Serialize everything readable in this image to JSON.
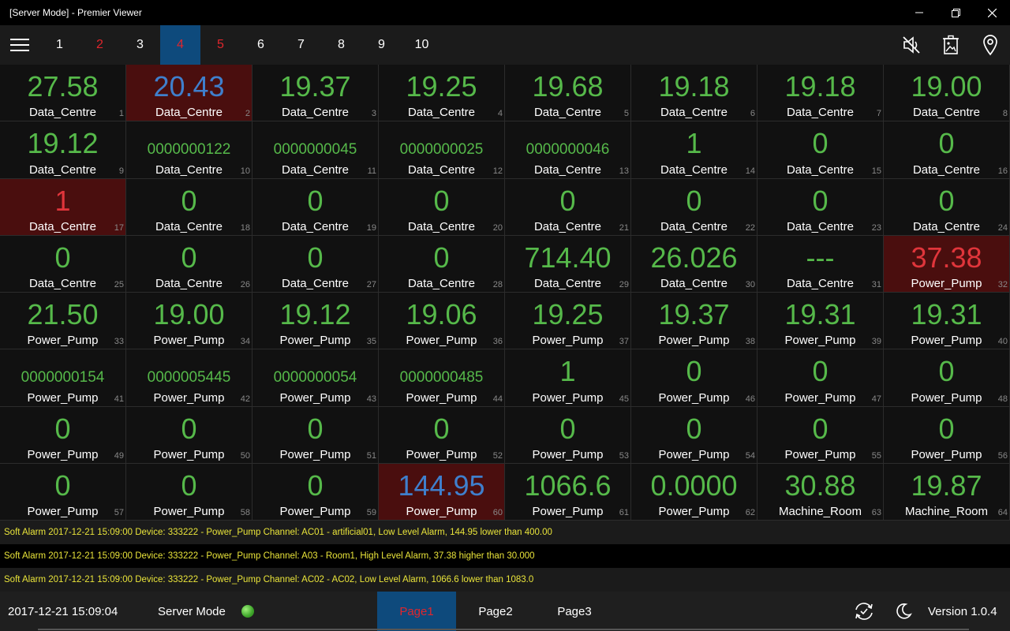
{
  "window": {
    "title": "[Server Mode] - Premier Viewer"
  },
  "toolbar": {
    "tabs": [
      {
        "label": "1",
        "state": "normal"
      },
      {
        "label": "2",
        "state": "alarm"
      },
      {
        "label": "3",
        "state": "normal"
      },
      {
        "label": "4",
        "state": "active-alarm"
      },
      {
        "label": "5",
        "state": "alarm"
      },
      {
        "label": "6",
        "state": "normal"
      },
      {
        "label": "7",
        "state": "normal"
      },
      {
        "label": "8",
        "state": "normal"
      },
      {
        "label": "9",
        "state": "normal"
      },
      {
        "label": "10",
        "state": "normal"
      }
    ],
    "icons": [
      "mute-icon",
      "delete-image-icon",
      "location-pin-icon"
    ]
  },
  "cells": [
    {
      "value": "27.58",
      "label": "Data_Centre",
      "index": "1",
      "style": "normal"
    },
    {
      "value": "20.43",
      "label": "Data_Centre",
      "index": "2",
      "style": "alarm-low"
    },
    {
      "value": "19.37",
      "label": "Data_Centre",
      "index": "3",
      "style": "normal"
    },
    {
      "value": "19.25",
      "label": "Data_Centre",
      "index": "4",
      "style": "normal"
    },
    {
      "value": "19.68",
      "label": "Data_Centre",
      "index": "5",
      "style": "normal"
    },
    {
      "value": "19.18",
      "label": "Data_Centre",
      "index": "6",
      "style": "normal"
    },
    {
      "value": "19.18",
      "label": "Data_Centre",
      "index": "7",
      "style": "normal"
    },
    {
      "value": "19.00",
      "label": "Data_Centre",
      "index": "8",
      "style": "normal"
    },
    {
      "value": "19.12",
      "label": "Data_Centre",
      "index": "9",
      "style": "normal"
    },
    {
      "value": "0000000122",
      "label": "Data_Centre",
      "index": "10",
      "style": "counter"
    },
    {
      "value": "0000000045",
      "label": "Data_Centre",
      "index": "11",
      "style": "counter"
    },
    {
      "value": "0000000025",
      "label": "Data_Centre",
      "index": "12",
      "style": "counter"
    },
    {
      "value": "0000000046",
      "label": "Data_Centre",
      "index": "13",
      "style": "counter"
    },
    {
      "value": "1",
      "label": "Data_Centre",
      "index": "14",
      "style": "normal"
    },
    {
      "value": "0",
      "label": "Data_Centre",
      "index": "15",
      "style": "normal"
    },
    {
      "value": "0",
      "label": "Data_Centre",
      "index": "16",
      "style": "normal"
    },
    {
      "value": "1",
      "label": "Data_Centre",
      "index": "17",
      "style": "alarm-high"
    },
    {
      "value": "0",
      "label": "Data_Centre",
      "index": "18",
      "style": "normal"
    },
    {
      "value": "0",
      "label": "Data_Centre",
      "index": "19",
      "style": "normal"
    },
    {
      "value": "0",
      "label": "Data_Centre",
      "index": "20",
      "style": "normal"
    },
    {
      "value": "0",
      "label": "Data_Centre",
      "index": "21",
      "style": "normal"
    },
    {
      "value": "0",
      "label": "Data_Centre",
      "index": "22",
      "style": "normal"
    },
    {
      "value": "0",
      "label": "Data_Centre",
      "index": "23",
      "style": "normal"
    },
    {
      "value": "0",
      "label": "Data_Centre",
      "index": "24",
      "style": "normal"
    },
    {
      "value": "0",
      "label": "Data_Centre",
      "index": "25",
      "style": "normal"
    },
    {
      "value": "0",
      "label": "Data_Centre",
      "index": "26",
      "style": "normal"
    },
    {
      "value": "0",
      "label": "Data_Centre",
      "index": "27",
      "style": "normal"
    },
    {
      "value": "0",
      "label": "Data_Centre",
      "index": "28",
      "style": "normal"
    },
    {
      "value": "714.40",
      "label": "Data_Centre",
      "index": "29",
      "style": "normal"
    },
    {
      "value": "26.026",
      "label": "Data_Centre",
      "index": "30",
      "style": "normal"
    },
    {
      "value": "---",
      "label": "Data_Centre",
      "index": "31",
      "style": "normal"
    },
    {
      "value": "37.38",
      "label": "Power_Pump",
      "index": "32",
      "style": "alarm-high"
    },
    {
      "value": "21.50",
      "label": "Power_Pump",
      "index": "33",
      "style": "normal"
    },
    {
      "value": "19.00",
      "label": "Power_Pump",
      "index": "34",
      "style": "normal"
    },
    {
      "value": "19.12",
      "label": "Power_Pump",
      "index": "35",
      "style": "normal"
    },
    {
      "value": "19.06",
      "label": "Power_Pump",
      "index": "36",
      "style": "normal"
    },
    {
      "value": "19.25",
      "label": "Power_Pump",
      "index": "37",
      "style": "normal"
    },
    {
      "value": "19.37",
      "label": "Power_Pump",
      "index": "38",
      "style": "normal"
    },
    {
      "value": "19.31",
      "label": "Power_Pump",
      "index": "39",
      "style": "normal"
    },
    {
      "value": "19.31",
      "label": "Power_Pump",
      "index": "40",
      "style": "normal"
    },
    {
      "value": "0000000154",
      "label": "Power_Pump",
      "index": "41",
      "style": "counter"
    },
    {
      "value": "0000005445",
      "label": "Power_Pump",
      "index": "42",
      "style": "counter"
    },
    {
      "value": "0000000054",
      "label": "Power_Pump",
      "index": "43",
      "style": "counter"
    },
    {
      "value": "0000000485",
      "label": "Power_Pump",
      "index": "44",
      "style": "counter"
    },
    {
      "value": "1",
      "label": "Power_Pump",
      "index": "45",
      "style": "normal"
    },
    {
      "value": "0",
      "label": "Power_Pump",
      "index": "46",
      "style": "normal"
    },
    {
      "value": "0",
      "label": "Power_Pump",
      "index": "47",
      "style": "normal"
    },
    {
      "value": "0",
      "label": "Power_Pump",
      "index": "48",
      "style": "normal"
    },
    {
      "value": "0",
      "label": "Power_Pump",
      "index": "49",
      "style": "normal"
    },
    {
      "value": "0",
      "label": "Power_Pump",
      "index": "50",
      "style": "normal"
    },
    {
      "value": "0",
      "label": "Power_Pump",
      "index": "51",
      "style": "normal"
    },
    {
      "value": "0",
      "label": "Power_Pump",
      "index": "52",
      "style": "normal"
    },
    {
      "value": "0",
      "label": "Power_Pump",
      "index": "53",
      "style": "normal"
    },
    {
      "value": "0",
      "label": "Power_Pump",
      "index": "54",
      "style": "normal"
    },
    {
      "value": "0",
      "label": "Power_Pump",
      "index": "55",
      "style": "normal"
    },
    {
      "value": "0",
      "label": "Power_Pump",
      "index": "56",
      "style": "normal"
    },
    {
      "value": "0",
      "label": "Power_Pump",
      "index": "57",
      "style": "normal"
    },
    {
      "value": "0",
      "label": "Power_Pump",
      "index": "58",
      "style": "normal"
    },
    {
      "value": "0",
      "label": "Power_Pump",
      "index": "59",
      "style": "normal"
    },
    {
      "value": "144.95",
      "label": "Power_Pump",
      "index": "60",
      "style": "alarm-low"
    },
    {
      "value": "1066.6",
      "label": "Power_Pump",
      "index": "61",
      "style": "normal"
    },
    {
      "value": "0.0000",
      "label": "Power_Pump",
      "index": "62",
      "style": "normal"
    },
    {
      "value": "30.88",
      "label": "Machine_Room",
      "index": "63",
      "style": "normal"
    },
    {
      "value": "19.87",
      "label": "Machine_Room",
      "index": "64",
      "style": "normal"
    }
  ],
  "alarms": [
    "Soft Alarm 2017-12-21 15:09:00 Device: 333222 - Power_Pump Channel: AC01 - artificial01, Low Level Alarm, 144.95 lower than 400.00",
    "Soft Alarm 2017-12-21 15:09:00 Device: 333222 - Power_Pump Channel: A03 - Room1, High Level Alarm, 37.38 higher than 30.000",
    "Soft Alarm 2017-12-21 15:09:00 Device: 333222 - Power_Pump Channel: AC02 - AC02, Low Level Alarm, 1066.6 lower than 1083.0"
  ],
  "status": {
    "datetime": "2017-12-21 15:09:04",
    "mode": "Server Mode",
    "connection": "connected",
    "pages": [
      "Page1",
      "Page2",
      "Page3"
    ],
    "active_page": "Page1",
    "version": "Version 1.0.4",
    "icons": [
      "sync-icon",
      "night-mode-icon"
    ]
  },
  "colors": {
    "value_green": "#56b94a",
    "alarm_red": "#e0353b",
    "alarm_blue": "#3f7fcc",
    "alarm_bg": "#4a0e0e",
    "accent_blue": "#0e4a7c",
    "alarm_text": "#e9e43a"
  }
}
